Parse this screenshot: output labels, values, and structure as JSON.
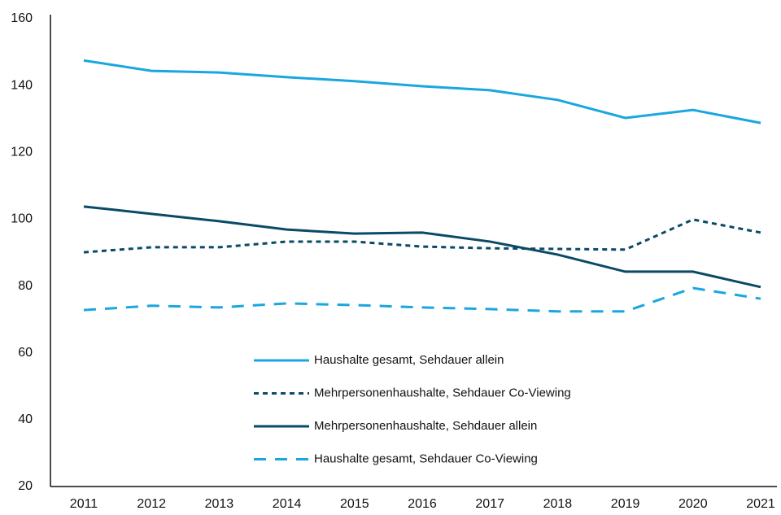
{
  "chart_data": {
    "type": "line",
    "categories": [
      "2011",
      "2012",
      "2013",
      "2014",
      "2015",
      "2016",
      "2017",
      "2018",
      "2019",
      "2020",
      "2021"
    ],
    "series": [
      {
        "name": "Haushalte gesamt, Sehdauer allein",
        "color": "#1ba6df",
        "linestyle": "solid",
        "values": [
          147.5,
          144.4,
          143.9,
          142.5,
          141.3,
          139.8,
          138.6,
          135.7,
          130.3,
          132.7,
          128.8
        ]
      },
      {
        "name": "Mehrpersonenhaushalte, Sehdauer Co-Viewing",
        "color": "#0b4a67",
        "linestyle": "dotted",
        "values": [
          90.1,
          91.6,
          91.6,
          93.3,
          93.3,
          91.8,
          91.3,
          91.1,
          90.9,
          99.9,
          96.0
        ]
      },
      {
        "name": "Mehrpersonenhaushalte, Sehdauer allein",
        "color": "#0b4a67",
        "linestyle": "solid",
        "values": [
          103.8,
          101.6,
          99.4,
          96.9,
          95.7,
          96.0,
          93.3,
          89.4,
          84.3,
          84.3,
          79.7
        ]
      },
      {
        "name": "Haushalte gesamt, Sehdauer Co-Viewing",
        "color": "#1ba6df",
        "linestyle": "dashed",
        "values": [
          72.8,
          74.1,
          73.6,
          74.8,
          74.3,
          73.6,
          73.1,
          72.4,
          72.4,
          79.4,
          76.2
        ]
      }
    ],
    "ylim": [
      20,
      160
    ],
    "yticks": [
      20,
      40,
      60,
      80,
      100,
      120,
      140,
      160
    ],
    "grid": false
  }
}
